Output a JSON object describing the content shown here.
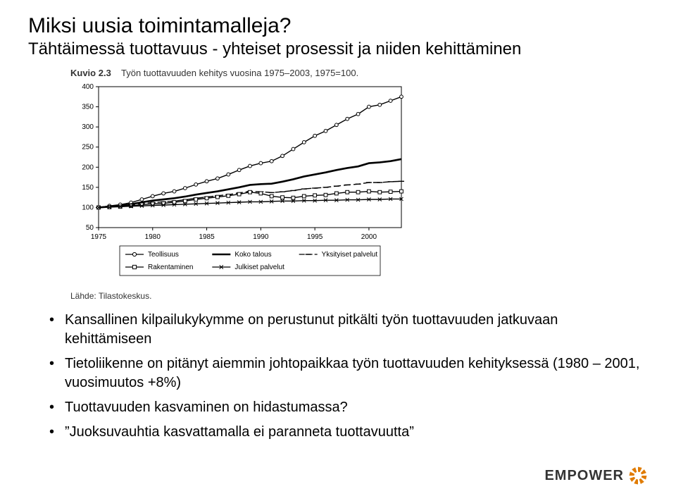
{
  "title": "Miksi uusia toimintamalleja?",
  "subtitle": "Tähtäimessä tuottavuus - yhteiset prosessit ja niiden kehittäminen",
  "figure": {
    "caption_label": "Kuvio 2.3",
    "caption_text": "Työn tuottavuuden kehitys vuosina 1975–2003, 1975=100.",
    "source": "Lähde: Tilastokeskus.",
    "chart": {
      "type": "line",
      "xlim": [
        1975,
        2003
      ],
      "x_ticks": [
        1975,
        1980,
        1985,
        1990,
        1995,
        2000
      ],
      "ylim": [
        50,
        400
      ],
      "y_ticks": [
        50,
        100,
        150,
        200,
        250,
        300,
        350,
        400
      ],
      "background_color": "#ffffff",
      "axis_color": "#000000",
      "tick_font_size": 10,
      "line_width": 1.4,
      "series": [
        {
          "name": "Teollisuus",
          "legend": "Teollisuus",
          "marker": "circle",
          "bold": false,
          "color": "#000000",
          "points": [
            [
              1975,
              100
            ],
            [
              1976,
              104
            ],
            [
              1977,
              107
            ],
            [
              1978,
              112
            ],
            [
              1979,
              120
            ],
            [
              1980,
              128
            ],
            [
              1981,
              135
            ],
            [
              1982,
              140
            ],
            [
              1983,
              148
            ],
            [
              1984,
              157
            ],
            [
              1985,
              165
            ],
            [
              1986,
              172
            ],
            [
              1987,
              182
            ],
            [
              1988,
              193
            ],
            [
              1989,
              203
            ],
            [
              1990,
              210
            ],
            [
              1991,
              215
            ],
            [
              1992,
              228
            ],
            [
              1993,
              245
            ],
            [
              1994,
              262
            ],
            [
              1995,
              278
            ],
            [
              1996,
              290
            ],
            [
              1997,
              305
            ],
            [
              1998,
              320
            ],
            [
              1999,
              332
            ],
            [
              2000,
              350
            ],
            [
              2001,
              355
            ],
            [
              2002,
              365
            ],
            [
              2003,
              375
            ]
          ]
        },
        {
          "name": "Koko talous",
          "legend": "Koko talous",
          "marker": "none",
          "bold": true,
          "color": "#000000",
          "points": [
            [
              1975,
              100
            ],
            [
              1976,
              102
            ],
            [
              1977,
              104
            ],
            [
              1978,
              108
            ],
            [
              1979,
              113
            ],
            [
              1980,
              117
            ],
            [
              1981,
              120
            ],
            [
              1982,
              123
            ],
            [
              1983,
              127
            ],
            [
              1984,
              132
            ],
            [
              1985,
              136
            ],
            [
              1986,
              140
            ],
            [
              1987,
              145
            ],
            [
              1988,
              150
            ],
            [
              1989,
              156
            ],
            [
              1990,
              158
            ],
            [
              1991,
              159
            ],
            [
              1992,
              164
            ],
            [
              1993,
              170
            ],
            [
              1994,
              177
            ],
            [
              1995,
              182
            ],
            [
              1996,
              187
            ],
            [
              1997,
              193
            ],
            [
              1998,
              198
            ],
            [
              1999,
              202
            ],
            [
              2000,
              210
            ],
            [
              2001,
              212
            ],
            [
              2002,
              215
            ],
            [
              2003,
              220
            ]
          ]
        },
        {
          "name": "Yksityiset palvelut",
          "legend": "Yksityiset palvelut",
          "marker": "dash-long",
          "bold": false,
          "color": "#000000",
          "points": [
            [
              1975,
              100
            ],
            [
              1976,
              101
            ],
            [
              1977,
              103
            ],
            [
              1978,
              106
            ],
            [
              1979,
              110
            ],
            [
              1980,
              112
            ],
            [
              1981,
              114
            ],
            [
              1982,
              116
            ],
            [
              1983,
              119
            ],
            [
              1984,
              123
            ],
            [
              1985,
              126
            ],
            [
              1986,
              129
            ],
            [
              1987,
              132
            ],
            [
              1988,
              136
            ],
            [
              1989,
              140
            ],
            [
              1990,
              139
            ],
            [
              1991,
              137
            ],
            [
              1992,
              139
            ],
            [
              1993,
              142
            ],
            [
              1994,
              146
            ],
            [
              1995,
              148
            ],
            [
              1996,
              150
            ],
            [
              1997,
              153
            ],
            [
              1998,
              156
            ],
            [
              1999,
              158
            ],
            [
              2000,
              162
            ],
            [
              2001,
              162
            ],
            [
              2002,
              164
            ],
            [
              2003,
              165
            ]
          ]
        },
        {
          "name": "Rakentaminen",
          "legend": "Rakentaminen",
          "marker": "square",
          "bold": false,
          "color": "#000000",
          "points": [
            [
              1975,
              100
            ],
            [
              1976,
              101
            ],
            [
              1977,
              102
            ],
            [
              1978,
              104
            ],
            [
              1979,
              107
            ],
            [
              1980,
              109
            ],
            [
              1981,
              110
            ],
            [
              1982,
              113
            ],
            [
              1983,
              116
            ],
            [
              1984,
              120
            ],
            [
              1985,
              123
            ],
            [
              1986,
              126
            ],
            [
              1987,
              129
            ],
            [
              1988,
              133
            ],
            [
              1989,
              138
            ],
            [
              1990,
              135
            ],
            [
              1991,
              128
            ],
            [
              1992,
              125
            ],
            [
              1993,
              124
            ],
            [
              1994,
              128
            ],
            [
              1995,
              130
            ],
            [
              1996,
              131
            ],
            [
              1997,
              135
            ],
            [
              1998,
              138
            ],
            [
              1999,
              138
            ],
            [
              2000,
              140
            ],
            [
              2001,
              138
            ],
            [
              2002,
              139
            ],
            [
              2003,
              140
            ]
          ]
        },
        {
          "name": "Julkiset palvelut",
          "legend": "Julkiset palvelut",
          "marker": "x",
          "bold": false,
          "color": "#000000",
          "points": [
            [
              1975,
              100
            ],
            [
              1976,
              101
            ],
            [
              1977,
              102
            ],
            [
              1978,
              103
            ],
            [
              1979,
              104
            ],
            [
              1980,
              105
            ],
            [
              1981,
              106
            ],
            [
              1982,
              107
            ],
            [
              1983,
              108
            ],
            [
              1984,
              109
            ],
            [
              1985,
              110
            ],
            [
              1986,
              111
            ],
            [
              1987,
              112
            ],
            [
              1988,
              113
            ],
            [
              1989,
              114
            ],
            [
              1990,
              114
            ],
            [
              1991,
              115
            ],
            [
              1992,
              116
            ],
            [
              1993,
              116
            ],
            [
              1994,
              117
            ],
            [
              1995,
              117
            ],
            [
              1996,
              118
            ],
            [
              1997,
              118
            ],
            [
              1998,
              119
            ],
            [
              1999,
              119
            ],
            [
              2000,
              120
            ],
            [
              2001,
              120
            ],
            [
              2002,
              121
            ],
            [
              2003,
              121
            ]
          ]
        }
      ],
      "legend_layout": [
        [
          "Teollisuus",
          "Koko talous",
          "Yksityiset palvelut"
        ],
        [
          "Rakentaminen",
          "Julkiset palvelut"
        ]
      ]
    }
  },
  "bullets": [
    "Kansallinen kilpailukykymme on perustunut pitkälti työn tuottavuuden jatkuvaan kehittämiseen",
    "Tietoliikenne on pitänyt aiemmin johtopaikkaa työn tuottavuuden kehityksessä (1980 – 2001, vuosimuutos +8%)",
    "Tuottavuuden kasvaminen on hidastumassa?",
    "\"Juoksuvauhtia kasvattamalla ei paranneta tuottavuutta\""
  ],
  "logo": {
    "text": "EMPOWER",
    "text_color": "#333333",
    "wheel_color": "#e07b00"
  }
}
